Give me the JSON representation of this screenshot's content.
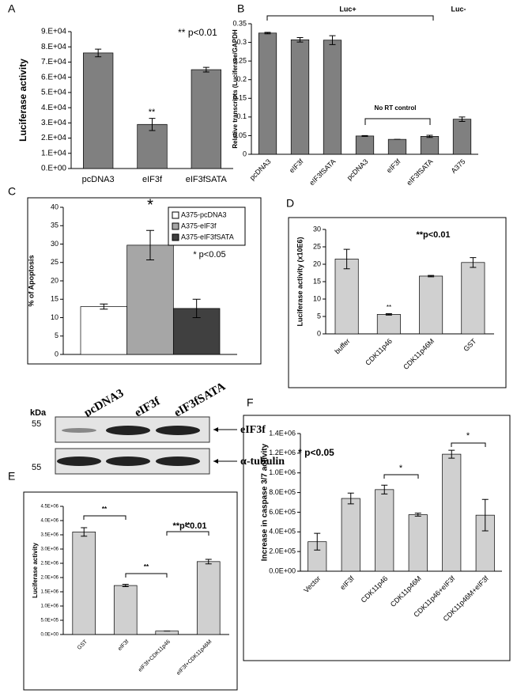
{
  "chart_data": [
    {
      "type": "bar",
      "panel": "A",
      "y_label": "Luciferase activity",
      "color": "#808080",
      "categories": [
        "pcDNA3",
        "eIF3f",
        "eIF3fSATA"
      ],
      "values": [
        76000,
        29000,
        65000
      ],
      "errors": [
        2500,
        4000,
        1500
      ],
      "ylim": [
        0,
        90000
      ],
      "yticks": [
        {
          "value": 0,
          "label": "0.E+00"
        },
        {
          "value": 10000,
          "label": "1.E+04"
        },
        {
          "value": 20000,
          "label": "2.E+04"
        },
        {
          "value": 30000,
          "label": "3.E+04"
        },
        {
          "value": 40000,
          "label": "4.E+04"
        },
        {
          "value": 50000,
          "label": "5.E+04"
        },
        {
          "value": 60000,
          "label": "6.E+04"
        },
        {
          "value": 70000,
          "label": "7.E+04"
        },
        {
          "value": 80000,
          "label": "8.E+04"
        },
        {
          "value": 90000,
          "label": "9.E+04"
        }
      ],
      "annotations": [
        "** p<0.01",
        "**"
      ]
    },
    {
      "type": "bar",
      "panel": "B",
      "y_label": "Relative transcripts (Luciferase/GAPDH",
      "color": "#808080",
      "categories": [
        "pcDNA3",
        "eIF3f",
        "eIF3fSATA",
        "pcDNA3",
        "eIF3f",
        "eIF3fSATA",
        "A375"
      ],
      "values": [
        0.325,
        0.307,
        0.306,
        0.049,
        0.04,
        0.048,
        0.094
      ],
      "errors": [
        0.002,
        0.006,
        0.012,
        0.001,
        0,
        0.003,
        0.006
      ],
      "ylim": [
        0,
        0.35
      ],
      "yticks": [
        0,
        0.05,
        0.1,
        0.15,
        0.2,
        0.25,
        0.3,
        0.35
      ],
      "annotations": [
        "Luc+",
        "Luc-",
        "No RT control"
      ]
    },
    {
      "type": "bar",
      "panel": "C",
      "y_label": "% of Apoptosis",
      "series": [
        {
          "name": "A375-pcDNA3",
          "color": "#ffffff",
          "values": [
            13
          ],
          "errors": [
            0.7
          ]
        },
        {
          "name": "A375-eIF3f",
          "color": "#a6a6a6",
          "values": [
            29.7
          ],
          "errors": [
            4
          ]
        },
        {
          "name": "A375-eIF3fSATA",
          "color": "#404040",
          "values": [
            12.5
          ],
          "errors": [
            2.5
          ]
        }
      ],
      "ylim": [
        0,
        40
      ],
      "yticks": [
        0,
        5,
        10,
        15,
        20,
        25,
        30,
        35,
        40
      ],
      "legend": "top-right",
      "annotations": [
        "*",
        "* p<0.05"
      ]
    },
    {
      "type": "bar",
      "panel": "D",
      "y_label": "Luciferase activity (x10E6)",
      "color": "#d0d0d0",
      "categories": [
        "buffer",
        "CDK11p46",
        "CDK11p46M",
        "GST"
      ],
      "values": [
        21.5,
        5.6,
        16.6,
        20.5
      ],
      "errors": [
        2.8,
        0.2,
        0.2,
        1.4
      ],
      "ylim": [
        0,
        30
      ],
      "yticks": [
        0,
        5,
        10,
        15,
        20,
        25,
        30
      ],
      "annotations": [
        "**p<0.01",
        "**"
      ]
    },
    {
      "type": "bar",
      "panel": "E",
      "y_label": "Luciferase activity",
      "color": "#d0d0d0",
      "categories": [
        "GST",
        "eIF3f",
        "eIF3f+CDK11p46",
        "eIF3f+CDK11p46M"
      ],
      "values": [
        3600000,
        1720000,
        120000,
        2560000
      ],
      "errors": [
        150000,
        40000,
        0,
        80000
      ],
      "ylim": [
        0,
        4500000
      ],
      "yticks": [
        {
          "value": 0,
          "label": "0.0E+00"
        },
        {
          "value": 500000,
          "label": "5.0E+05"
        },
        {
          "value": 1000000,
          "label": "1.0E+06"
        },
        {
          "value": 1500000,
          "label": "1.5E+06"
        },
        {
          "value": 2000000,
          "label": "2.0E+06"
        },
        {
          "value": 2500000,
          "label": "2.5E+06"
        },
        {
          "value": 3000000,
          "label": "3.0E+06"
        },
        {
          "value": 3500000,
          "label": "3.5E+06"
        },
        {
          "value": 4000000,
          "label": "4.0E+06"
        },
        {
          "value": 4500000,
          "label": "4.5E+06"
        }
      ],
      "annotations": [
        "**p<0.01",
        "**",
        "**",
        "**"
      ]
    },
    {
      "type": "bar",
      "panel": "F",
      "y_label": "Increase in caspase 3/7 activity",
      "color": "#d0d0d0",
      "categories": [
        "Vector",
        "eIF3f",
        "CDK11p46",
        "CDK11p46M",
        "CDK11p46+eIF3f",
        "CDK11p46M+eIF3f"
      ],
      "values": [
        300000,
        740000,
        830000,
        575000,
        1190000,
        570000
      ],
      "errors": [
        85000,
        55000,
        45000,
        15000,
        40000,
        160000
      ],
      "ylim": [
        0,
        1400000
      ],
      "yticks": [
        {
          "value": 0,
          "label": "0.0E+00"
        },
        {
          "value": 200000,
          "label": "2.0E+05"
        },
        {
          "value": 400000,
          "label": "4.0E+05"
        },
        {
          "value": 600000,
          "label": "6.0E+05"
        },
        {
          "value": 800000,
          "label": "8.0E+05"
        },
        {
          "value": 1000000,
          "label": "1.0E+06"
        },
        {
          "value": 1200000,
          "label": "1.2E+06"
        },
        {
          "value": 1400000,
          "label": "1.4E+06"
        }
      ],
      "annotations": [
        "* p<0.05",
        "*",
        "*"
      ]
    }
  ],
  "blot": {
    "kda": "kDa",
    "markers": [
      "55",
      "55"
    ],
    "lanes": [
      "pcDNA3",
      "eIF3f",
      "eIF3fSATA"
    ],
    "bands": [
      "eIF3f",
      "α-tubulin"
    ]
  }
}
